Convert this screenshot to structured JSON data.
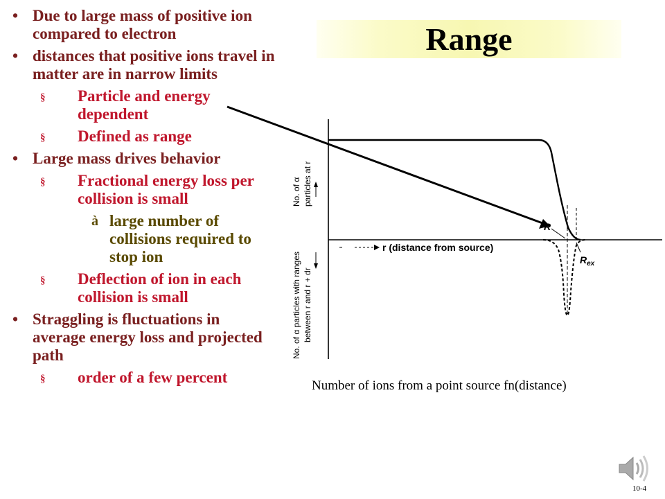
{
  "slide": {
    "title": "Range",
    "caption": "Number of ions from a point source fn(distance)",
    "slide_number": "10-4"
  },
  "bullets": [
    {
      "level": 1,
      "marker": "•",
      "text": "Due to large mass of positive ion compared to electron"
    },
    {
      "level": 1,
      "marker": "•",
      "text": "distances that positive ions travel in matter are in narrow limits"
    },
    {
      "level": 2,
      "marker": "§",
      "text": "Particle and energy dependent"
    },
    {
      "level": 2,
      "marker": "§",
      "text": "Defined as range"
    },
    {
      "level": 1,
      "marker": "•",
      "text": "Large mass drives behavior"
    },
    {
      "level": 2,
      "marker": "§",
      "text": "Fractional energy loss per collision is small"
    },
    {
      "level": 3,
      "marker": "à",
      "text": "large number of collisions required to stop ion"
    },
    {
      "level": 2,
      "marker": "§",
      "text": "Deflection of ion in each collision is small"
    },
    {
      "level": 1,
      "marker": "•",
      "text": "Straggling is fluctuations in average energy loss and projected path"
    },
    {
      "level": 2,
      "marker": "§",
      "text": "order of a few percent"
    }
  ],
  "diagram": {
    "ylabel_top_line1": "No. of α",
    "ylabel_top_line2": "particles at r",
    "ylabel_bottom_line1": "No. of α particles with ranges",
    "ylabel_bottom_line2": "between r and r + dr",
    "xlabel": "r (distance from source)",
    "label_R": "R",
    "label_Rex": "R",
    "label_Rex_sub": "ex"
  },
  "colors": {
    "level1": "#7a2020",
    "level2": "#c0172d",
    "level3": "#5a4a00",
    "title_band": "#f7f7b2"
  },
  "icons": {
    "speaker": "speaker-icon"
  }
}
